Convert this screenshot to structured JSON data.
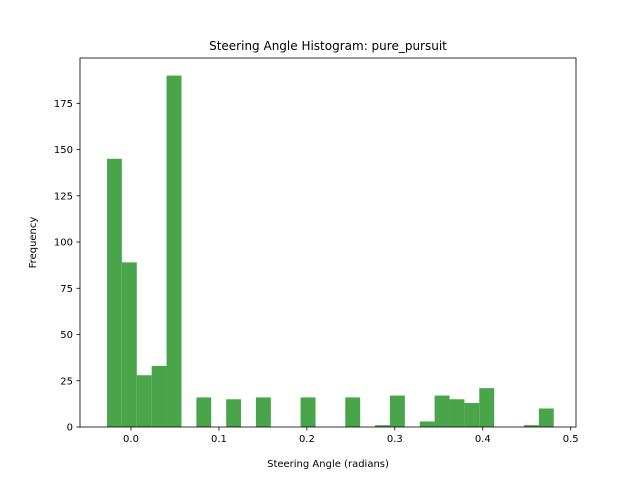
{
  "chart_data": {
    "type": "bar",
    "title": "Steering Angle Histogram: pure_pursuit",
    "xlabel": "Steering Angle (radians)",
    "ylabel": "Frequency",
    "xlim": [
      -0.058,
      0.506
    ],
    "ylim": [
      0,
      199.5
    ],
    "xticks": [
      {
        "value": 0.0,
        "label": "0.0"
      },
      {
        "value": 0.1,
        "label": "0.1"
      },
      {
        "value": 0.2,
        "label": "0.2"
      },
      {
        "value": 0.3,
        "label": "0.3"
      },
      {
        "value": 0.4,
        "label": "0.4"
      },
      {
        "value": 0.5,
        "label": "0.5"
      }
    ],
    "yticks": [
      {
        "value": 0,
        "label": "0"
      },
      {
        "value": 25,
        "label": "25"
      },
      {
        "value": 50,
        "label": "50"
      },
      {
        "value": 75,
        "label": "75"
      },
      {
        "value": 100,
        "label": "100"
      },
      {
        "value": 125,
        "label": "125"
      },
      {
        "value": 150,
        "label": "150"
      },
      {
        "value": 175,
        "label": "175"
      }
    ],
    "color": "#4aa44a",
    "grid": false,
    "legend": "none",
    "bins": [
      {
        "start": -0.0273,
        "end": -0.0104,
        "count": 145
      },
      {
        "start": -0.0104,
        "end": 0.0066,
        "count": 89
      },
      {
        "start": 0.0066,
        "end": 0.0235,
        "count": 28
      },
      {
        "start": 0.0235,
        "end": 0.0404,
        "count": 33
      },
      {
        "start": 0.0404,
        "end": 0.0574,
        "count": 190
      },
      {
        "start": 0.0743,
        "end": 0.0912,
        "count": 16
      },
      {
        "start": 0.1082,
        "end": 0.1251,
        "count": 15
      },
      {
        "start": 0.142,
        "end": 0.159,
        "count": 16
      },
      {
        "start": 0.1928,
        "end": 0.2098,
        "count": 16
      },
      {
        "start": 0.2436,
        "end": 0.2606,
        "count": 16
      },
      {
        "start": 0.2775,
        "end": 0.2944,
        "count": 1
      },
      {
        "start": 0.2944,
        "end": 0.3114,
        "count": 17
      },
      {
        "start": 0.3283,
        "end": 0.3452,
        "count": 3
      },
      {
        "start": 0.3452,
        "end": 0.3622,
        "count": 17
      },
      {
        "start": 0.3622,
        "end": 0.3791,
        "count": 15
      },
      {
        "start": 0.3791,
        "end": 0.396,
        "count": 13
      },
      {
        "start": 0.396,
        "end": 0.413,
        "count": 21
      },
      {
        "start": 0.4468,
        "end": 0.4638,
        "count": 1
      },
      {
        "start": 0.4638,
        "end": 0.4807,
        "count": 10
      }
    ]
  }
}
